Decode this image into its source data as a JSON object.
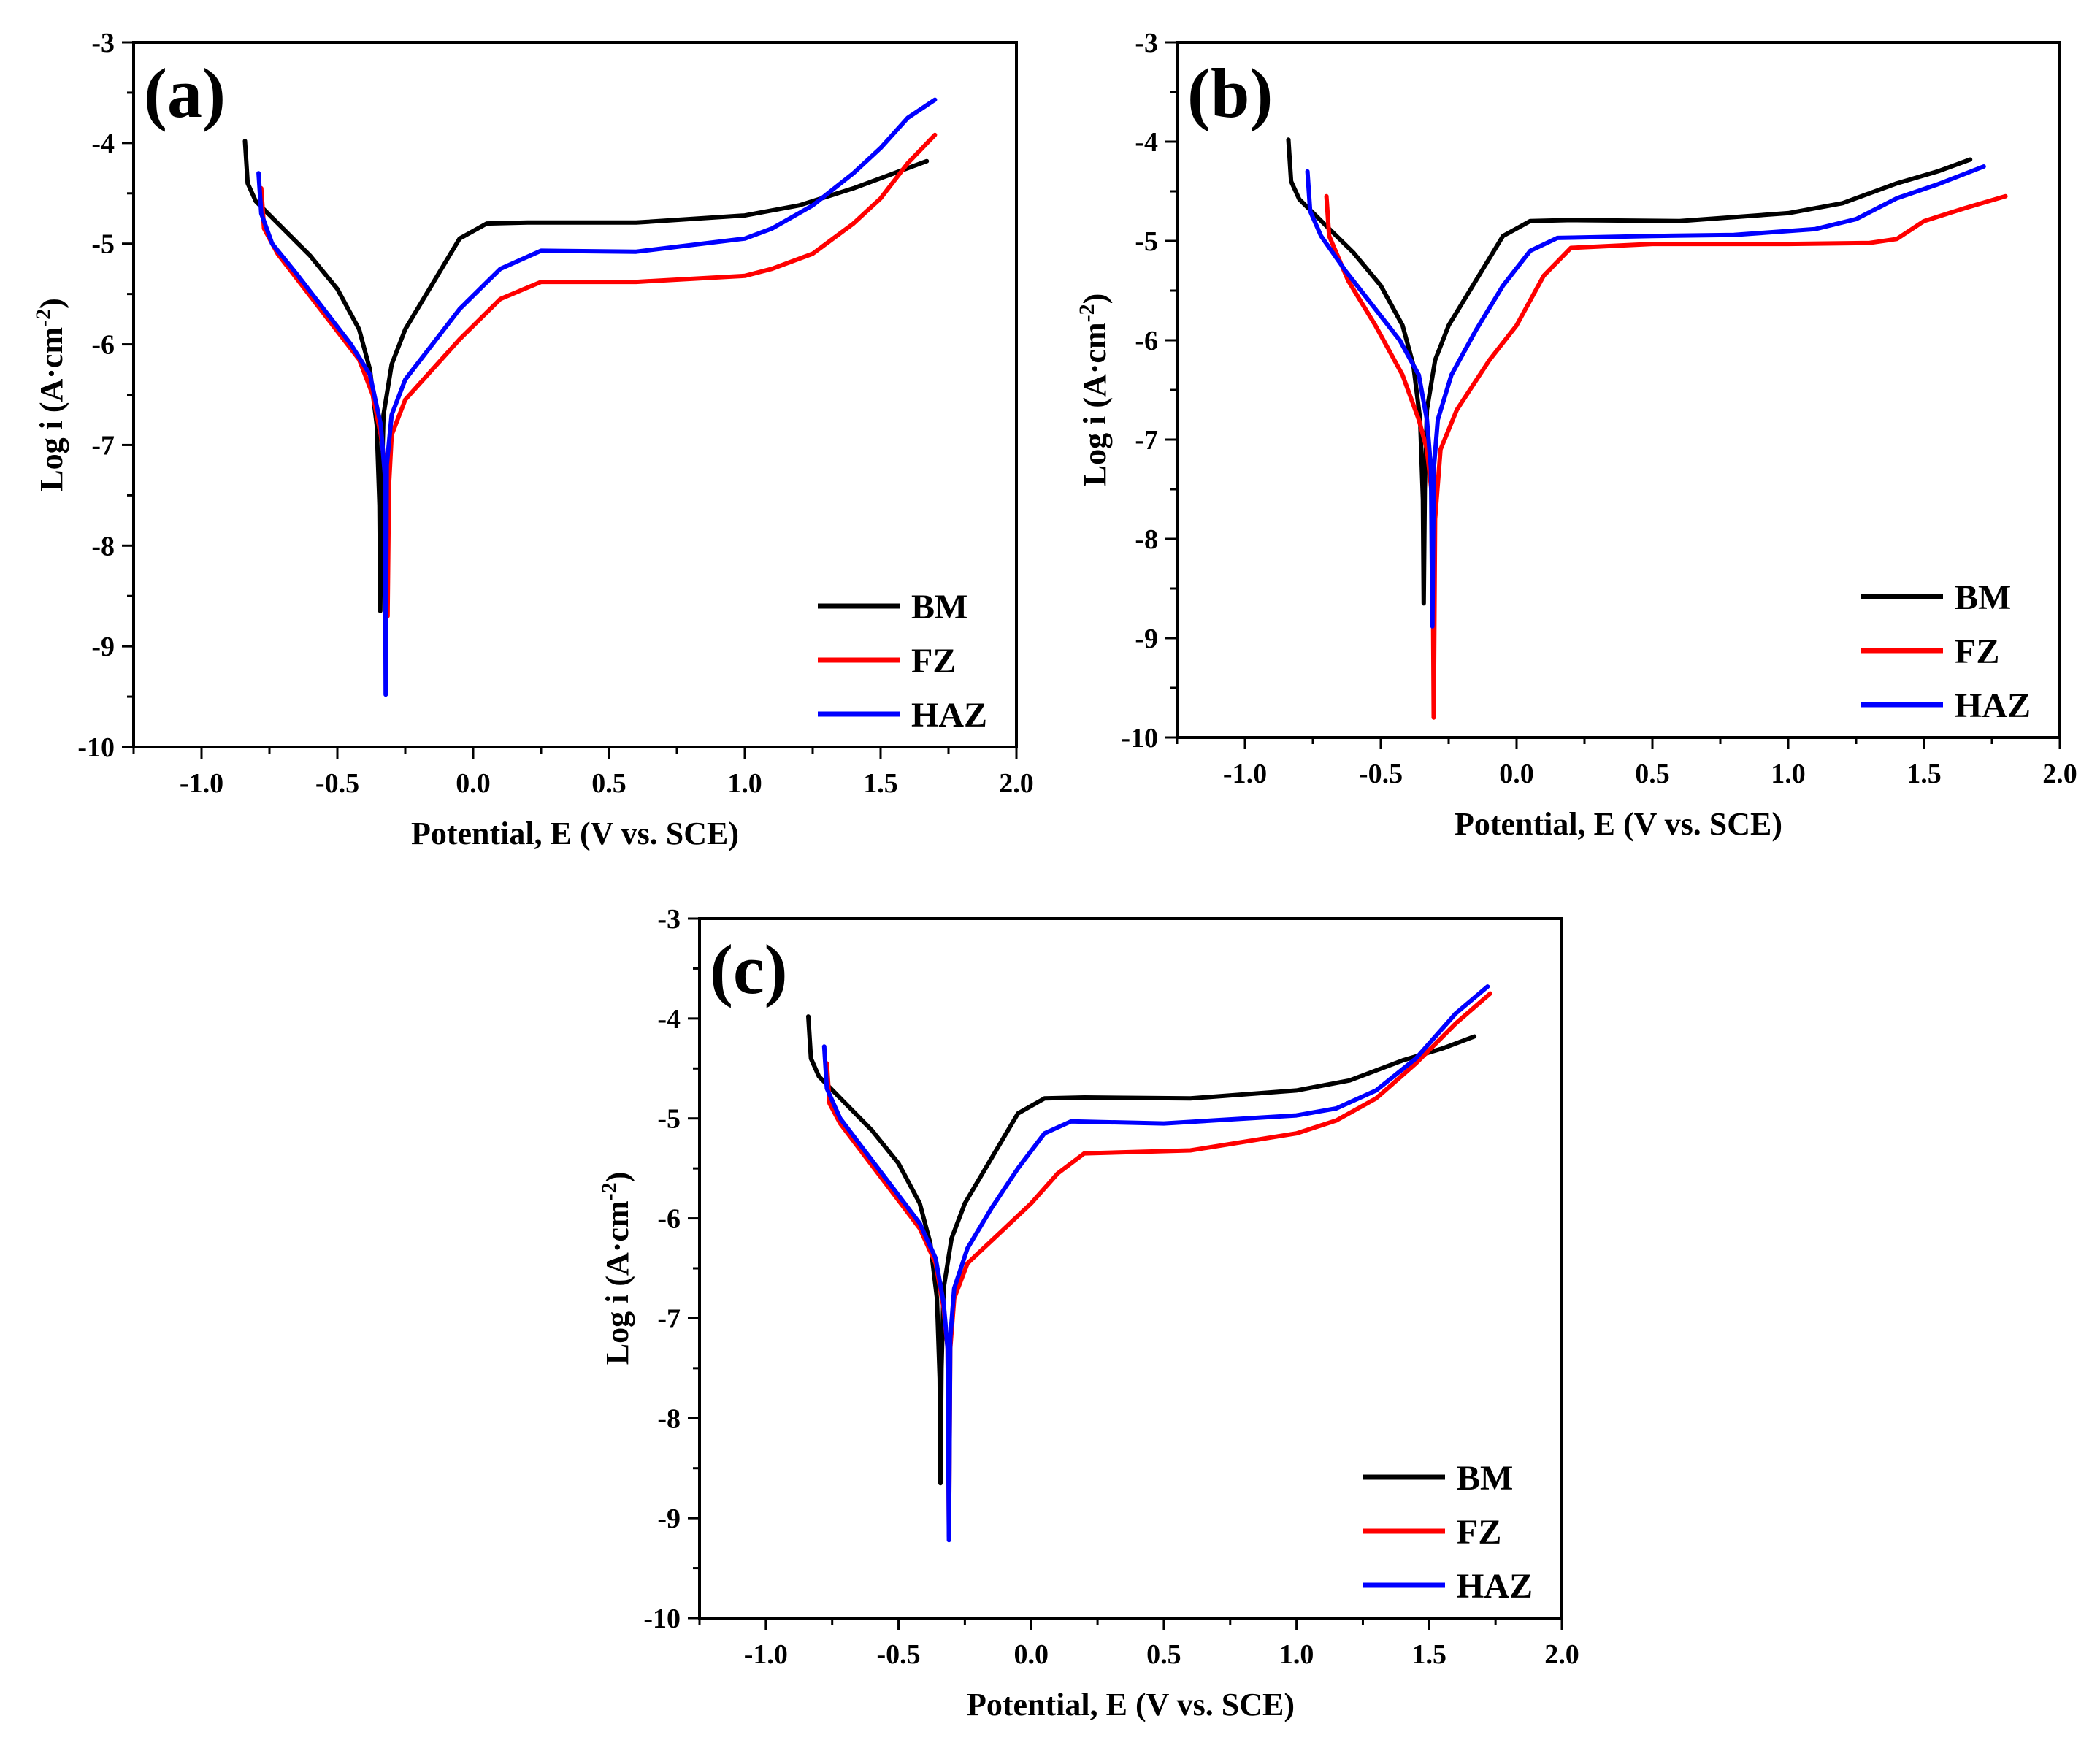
{
  "chart_data": [
    {
      "type": "line",
      "panel_label": "(a)",
      "xlabel": "Potential, E (V vs. SCE)",
      "ylabel": "Log i (A·cm",
      "ylabel_sup": "-2",
      "ylabel_end": ")",
      "xlim": [
        -1.25,
        2.0
      ],
      "ylim": [
        -10,
        -3
      ],
      "xticks": [
        -1.0,
        -0.5,
        0.0,
        0.5,
        1.0,
        1.5,
        2.0
      ],
      "xtick_labels": [
        "-1.0",
        "-0.5",
        "0.0",
        "0.5",
        "1.0",
        "1.5",
        "2.0"
      ],
      "yticks": [
        -3,
        -4,
        -5,
        -6,
        -7,
        -8,
        -9,
        -10
      ],
      "ytick_labels": [
        "-3",
        "-4",
        "-5",
        "-6",
        "-7",
        "-8",
        "-9",
        "-10"
      ],
      "legend_position": "bottom-right",
      "series": [
        {
          "name": "BM",
          "color": "#000000",
          "points": [
            [
              -0.84,
              -3.98
            ],
            [
              -0.83,
              -4.4
            ],
            [
              -0.8,
              -4.58
            ],
            [
              -0.7,
              -4.85
            ],
            [
              -0.6,
              -5.12
            ],
            [
              -0.5,
              -5.45
            ],
            [
              -0.42,
              -5.85
            ],
            [
              -0.38,
              -6.25
            ],
            [
              -0.355,
              -6.8
            ],
            [
              -0.345,
              -7.6
            ],
            [
              -0.342,
              -8.65
            ],
            [
              -0.338,
              -7.5
            ],
            [
              -0.33,
              -6.7
            ],
            [
              -0.3,
              -6.2
            ],
            [
              -0.25,
              -5.85
            ],
            [
              -0.15,
              -5.4
            ],
            [
              -0.05,
              -4.95
            ],
            [
              0.05,
              -4.8
            ],
            [
              0.2,
              -4.79
            ],
            [
              0.6,
              -4.79
            ],
            [
              1.0,
              -4.72
            ],
            [
              1.2,
              -4.62
            ],
            [
              1.4,
              -4.45
            ],
            [
              1.55,
              -4.3
            ],
            [
              1.67,
              -4.18
            ]
          ]
        },
        {
          "name": "FZ",
          "color": "#ff0000",
          "points": [
            [
              -0.78,
              -4.45
            ],
            [
              -0.77,
              -4.85
            ],
            [
              -0.72,
              -5.1
            ],
            [
              -0.62,
              -5.45
            ],
            [
              -0.52,
              -5.8
            ],
            [
              -0.42,
              -6.15
            ],
            [
              -0.37,
              -6.5
            ],
            [
              -0.34,
              -6.9
            ],
            [
              -0.32,
              -7.3
            ],
            [
              -0.315,
              -8.7
            ],
            [
              -0.31,
              -7.4
            ],
            [
              -0.3,
              -6.9
            ],
            [
              -0.25,
              -6.55
            ],
            [
              -0.15,
              -6.25
            ],
            [
              -0.05,
              -5.95
            ],
            [
              0.1,
              -5.55
            ],
            [
              0.25,
              -5.38
            ],
            [
              0.6,
              -5.38
            ],
            [
              1.0,
              -5.32
            ],
            [
              1.1,
              -5.25
            ],
            [
              1.25,
              -5.1
            ],
            [
              1.4,
              -4.8
            ],
            [
              1.5,
              -4.55
            ],
            [
              1.6,
              -4.2
            ],
            [
              1.7,
              -3.92
            ]
          ]
        },
        {
          "name": "HAZ",
          "color": "#0000ff",
          "points": [
            [
              -0.79,
              -4.3
            ],
            [
              -0.78,
              -4.7
            ],
            [
              -0.74,
              -5.0
            ],
            [
              -0.65,
              -5.3
            ],
            [
              -0.55,
              -5.65
            ],
            [
              -0.45,
              -6.0
            ],
            [
              -0.38,
              -6.3
            ],
            [
              -0.34,
              -6.8
            ],
            [
              -0.325,
              -7.3
            ],
            [
              -0.322,
              -9.48
            ],
            [
              -0.318,
              -7.2
            ],
            [
              -0.3,
              -6.7
            ],
            [
              -0.25,
              -6.35
            ],
            [
              -0.15,
              -6.0
            ],
            [
              -0.05,
              -5.65
            ],
            [
              0.1,
              -5.25
            ],
            [
              0.25,
              -5.07
            ],
            [
              0.6,
              -5.08
            ],
            [
              1.0,
              -4.95
            ],
            [
              1.1,
              -4.85
            ],
            [
              1.25,
              -4.62
            ],
            [
              1.4,
              -4.3
            ],
            [
              1.5,
              -4.05
            ],
            [
              1.6,
              -3.75
            ],
            [
              1.7,
              -3.57
            ]
          ]
        }
      ]
    },
    {
      "type": "line",
      "panel_label": "(b)",
      "xlabel": "Potential, E (V vs. SCE)",
      "ylabel": "Log i (A·cm",
      "ylabel_sup": "-2",
      "ylabel_end": ")",
      "xlim": [
        -1.25,
        2.0
      ],
      "ylim": [
        -10,
        -3
      ],
      "xticks": [
        -1.0,
        -0.5,
        0.0,
        0.5,
        1.0,
        1.5,
        2.0
      ],
      "xtick_labels": [
        "-1.0",
        "-0.5",
        "0.0",
        "0.5",
        "1.0",
        "1.5",
        "2.0"
      ],
      "yticks": [
        -3,
        -4,
        -5,
        -6,
        -7,
        -8,
        -9,
        -10
      ],
      "ytick_labels": [
        "-3",
        "-4",
        "-5",
        "-6",
        "-7",
        "-8",
        "-9",
        "-10"
      ],
      "legend_position": "bottom-right",
      "series": [
        {
          "name": "BM",
          "color": "#000000",
          "points": [
            [
              -0.84,
              -3.98
            ],
            [
              -0.83,
              -4.4
            ],
            [
              -0.8,
              -4.58
            ],
            [
              -0.7,
              -4.85
            ],
            [
              -0.6,
              -5.12
            ],
            [
              -0.5,
              -5.45
            ],
            [
              -0.42,
              -5.85
            ],
            [
              -0.38,
              -6.25
            ],
            [
              -0.355,
              -6.8
            ],
            [
              -0.345,
              -7.6
            ],
            [
              -0.342,
              -8.65
            ],
            [
              -0.338,
              -7.5
            ],
            [
              -0.33,
              -6.7
            ],
            [
              -0.3,
              -6.2
            ],
            [
              -0.25,
              -5.85
            ],
            [
              -0.15,
              -5.4
            ],
            [
              -0.05,
              -4.95
            ],
            [
              0.05,
              -4.8
            ],
            [
              0.2,
              -4.79
            ],
            [
              0.6,
              -4.8
            ],
            [
              1.0,
              -4.72
            ],
            [
              1.2,
              -4.62
            ],
            [
              1.4,
              -4.42
            ],
            [
              1.55,
              -4.3
            ],
            [
              1.67,
              -4.18
            ]
          ]
        },
        {
          "name": "FZ",
          "color": "#ff0000",
          "points": [
            [
              -0.7,
              -4.55
            ],
            [
              -0.69,
              -4.95
            ],
            [
              -0.62,
              -5.4
            ],
            [
              -0.52,
              -5.85
            ],
            [
              -0.42,
              -6.35
            ],
            [
              -0.36,
              -6.8
            ],
            [
              -0.33,
              -7.1
            ],
            [
              -0.31,
              -7.6
            ],
            [
              -0.305,
              -9.8
            ],
            [
              -0.3,
              -7.8
            ],
            [
              -0.28,
              -7.1
            ],
            [
              -0.22,
              -6.7
            ],
            [
              -0.1,
              -6.2
            ],
            [
              0.0,
              -5.85
            ],
            [
              0.1,
              -5.35
            ],
            [
              0.2,
              -5.07
            ],
            [
              0.5,
              -5.03
            ],
            [
              1.0,
              -5.03
            ],
            [
              1.3,
              -5.02
            ],
            [
              1.4,
              -4.98
            ],
            [
              1.5,
              -4.8
            ],
            [
              1.65,
              -4.67
            ],
            [
              1.8,
              -4.55
            ]
          ]
        },
        {
          "name": "HAZ",
          "color": "#0000ff",
          "points": [
            [
              -0.77,
              -4.3
            ],
            [
              -0.76,
              -4.7
            ],
            [
              -0.72,
              -4.95
            ],
            [
              -0.63,
              -5.3
            ],
            [
              -0.53,
              -5.65
            ],
            [
              -0.43,
              -6.0
            ],
            [
              -0.36,
              -6.35
            ],
            [
              -0.33,
              -6.8
            ],
            [
              -0.315,
              -7.3
            ],
            [
              -0.31,
              -8.88
            ],
            [
              -0.305,
              -7.3
            ],
            [
              -0.29,
              -6.8
            ],
            [
              -0.24,
              -6.35
            ],
            [
              -0.15,
              -5.9
            ],
            [
              -0.05,
              -5.45
            ],
            [
              0.05,
              -5.1
            ],
            [
              0.15,
              -4.97
            ],
            [
              0.5,
              -4.95
            ],
            [
              0.8,
              -4.94
            ],
            [
              1.1,
              -4.88
            ],
            [
              1.25,
              -4.78
            ],
            [
              1.4,
              -4.57
            ],
            [
              1.55,
              -4.43
            ],
            [
              1.72,
              -4.25
            ]
          ]
        }
      ]
    },
    {
      "type": "line",
      "panel_label": "(c)",
      "xlabel": "Potential, E (V vs. SCE)",
      "ylabel": "Log i (A·cm",
      "ylabel_sup": "-2",
      "ylabel_end": ")",
      "xlim": [
        -1.25,
        2.0
      ],
      "ylim": [
        -10,
        -3
      ],
      "xticks": [
        -1.0,
        -0.5,
        0.0,
        0.5,
        1.0,
        1.5,
        2.0
      ],
      "xtick_labels": [
        "-1.0",
        "-0.5",
        "0.0",
        "0.5",
        "1.0",
        "1.5",
        "2.0"
      ],
      "yticks": [
        -3,
        -4,
        -5,
        -6,
        -7,
        -8,
        -9,
        -10
      ],
      "ytick_labels": [
        "-3",
        "-4",
        "-5",
        "-6",
        "-7",
        "-8",
        "-9",
        "-10"
      ],
      "legend_position": "bottom-right",
      "series": [
        {
          "name": "BM",
          "color": "#000000",
          "points": [
            [
              -0.84,
              -3.98
            ],
            [
              -0.83,
              -4.4
            ],
            [
              -0.8,
              -4.58
            ],
            [
              -0.7,
              -4.85
            ],
            [
              -0.6,
              -5.12
            ],
            [
              -0.5,
              -5.45
            ],
            [
              -0.42,
              -5.85
            ],
            [
              -0.38,
              -6.25
            ],
            [
              -0.355,
              -6.8
            ],
            [
              -0.345,
              -7.6
            ],
            [
              -0.342,
              -8.65
            ],
            [
              -0.338,
              -7.5
            ],
            [
              -0.33,
              -6.7
            ],
            [
              -0.3,
              -6.2
            ],
            [
              -0.25,
              -5.85
            ],
            [
              -0.15,
              -5.4
            ],
            [
              -0.05,
              -4.95
            ],
            [
              0.05,
              -4.8
            ],
            [
              0.2,
              -4.79
            ],
            [
              0.6,
              -4.8
            ],
            [
              1.0,
              -4.72
            ],
            [
              1.2,
              -4.62
            ],
            [
              1.4,
              -4.42
            ],
            [
              1.55,
              -4.3
            ],
            [
              1.67,
              -4.18
            ]
          ]
        },
        {
          "name": "FZ",
          "color": "#ff0000",
          "points": [
            [
              -0.77,
              -4.45
            ],
            [
              -0.76,
              -4.85
            ],
            [
              -0.72,
              -5.05
            ],
            [
              -0.62,
              -5.4
            ],
            [
              -0.52,
              -5.75
            ],
            [
              -0.42,
              -6.1
            ],
            [
              -0.36,
              -6.45
            ],
            [
              -0.33,
              -6.9
            ],
            [
              -0.315,
              -7.3
            ],
            [
              -0.31,
              -9.18
            ],
            [
              -0.305,
              -7.3
            ],
            [
              -0.29,
              -6.8
            ],
            [
              -0.24,
              -6.45
            ],
            [
              -0.1,
              -6.1
            ],
            [
              0.0,
              -5.85
            ],
            [
              0.1,
              -5.55
            ],
            [
              0.2,
              -5.35
            ],
            [
              0.6,
              -5.32
            ],
            [
              1.0,
              -5.15
            ],
            [
              1.15,
              -5.02
            ],
            [
              1.3,
              -4.8
            ],
            [
              1.45,
              -4.45
            ],
            [
              1.6,
              -4.05
            ],
            [
              1.73,
              -3.75
            ]
          ]
        },
        {
          "name": "HAZ",
          "color": "#0000ff",
          "points": [
            [
              -0.78,
              -4.28
            ],
            [
              -0.77,
              -4.7
            ],
            [
              -0.72,
              -5.0
            ],
            [
              -0.62,
              -5.35
            ],
            [
              -0.52,
              -5.7
            ],
            [
              -0.42,
              -6.05
            ],
            [
              -0.36,
              -6.4
            ],
            [
              -0.33,
              -6.85
            ],
            [
              -0.315,
              -7.3
            ],
            [
              -0.31,
              -9.22
            ],
            [
              -0.305,
              -7.2
            ],
            [
              -0.29,
              -6.7
            ],
            [
              -0.24,
              -6.3
            ],
            [
              -0.15,
              -5.9
            ],
            [
              -0.05,
              -5.5
            ],
            [
              0.05,
              -5.15
            ],
            [
              0.15,
              -5.03
            ],
            [
              0.5,
              -5.05
            ],
            [
              1.0,
              -4.97
            ],
            [
              1.15,
              -4.9
            ],
            [
              1.3,
              -4.72
            ],
            [
              1.45,
              -4.4
            ],
            [
              1.6,
              -3.95
            ],
            [
              1.72,
              -3.68
            ]
          ]
        }
      ]
    }
  ]
}
